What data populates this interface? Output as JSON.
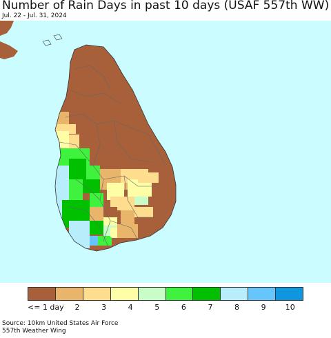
{
  "title": "Number of Rain Days in past 10 days (USAF 557th WW)",
  "subtitle": "Jul. 22 - Jul. 31, 2024",
  "colors": {
    "ocean": "#cbfcff",
    "land_outside": "#a8603b",
    "boundary": "#666666"
  },
  "legend": {
    "items": [
      {
        "label": "<= 1 day",
        "color": "#a8603b"
      },
      {
        "label": "2",
        "color": "#e9b56a"
      },
      {
        "label": "3",
        "color": "#fedd8e"
      },
      {
        "label": "4",
        "color": "#fefea6"
      },
      {
        "label": "5",
        "color": "#c8fdc8"
      },
      {
        "label": "6",
        "color": "#3ef23e"
      },
      {
        "label": "7",
        "color": "#00c000"
      },
      {
        "label": "8",
        "color": "#b8eefc"
      },
      {
        "label": "9",
        "color": "#66c6fb"
      },
      {
        "label": "10",
        "color": "#1096de"
      }
    ]
  },
  "source": {
    "line1": "Source: 10km United States Air Force",
    "line2": "557th Weather Wing"
  }
}
